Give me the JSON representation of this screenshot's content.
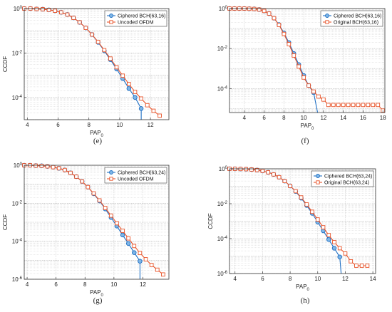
{
  "chart_data": [
    {
      "panel": "(e)",
      "type": "line",
      "xlabel": "PAP",
      "xlabel_sub": "0",
      "ylabel": "CCDF",
      "yscale": "log",
      "xlim": [
        3.8,
        13.2
      ],
      "ylim_exp": [
        -5,
        0
      ],
      "xticks": [
        4,
        6,
        8,
        10,
        12
      ],
      "yticks": [
        {
          "exp": 0,
          "label": "10",
          "sup": "0"
        },
        {
          "exp": -2,
          "label": "10",
          "sup": "-2"
        },
        {
          "exp": -4,
          "label": "10",
          "sup": "-4"
        }
      ],
      "grid": true,
      "legend": "top-right",
      "series": [
        {
          "name": "Ciphered BCH(63,16)",
          "color": "#1f6fc4",
          "marker": "circle",
          "x": [
            3.8,
            4.2,
            4.6,
            5.0,
            5.4,
            5.8,
            6.2,
            6.6,
            7.0,
            7.4,
            7.8,
            8.2,
            8.6,
            9.0,
            9.4,
            9.8,
            10.2,
            10.6,
            11.0,
            11.4
          ],
          "y_exp": [
            0.0,
            0.0,
            -0.02,
            -0.03,
            -0.06,
            -0.1,
            -0.17,
            -0.27,
            -0.42,
            -0.62,
            -0.87,
            -1.17,
            -1.52,
            -1.9,
            -2.3,
            -2.72,
            -3.15,
            -3.6,
            -4.0,
            -4.5
          ],
          "drop_x": 11.4
        },
        {
          "name": "Uncoded OFDM",
          "color": "#e8542a",
          "marker": "square",
          "x": [
            3.8,
            4.2,
            4.6,
            5.0,
            5.4,
            5.8,
            6.2,
            6.6,
            7.0,
            7.4,
            7.8,
            8.2,
            8.6,
            9.0,
            9.4,
            9.8,
            10.2,
            10.6,
            11.0,
            11.4,
            11.8,
            12.2,
            12.6
          ],
          "y_exp": [
            0.0,
            0.0,
            -0.02,
            -0.03,
            -0.06,
            -0.1,
            -0.17,
            -0.27,
            -0.42,
            -0.62,
            -0.87,
            -1.17,
            -1.5,
            -1.87,
            -2.25,
            -2.64,
            -3.02,
            -3.4,
            -3.75,
            -4.05,
            -4.35,
            -4.6,
            -4.82
          ]
        }
      ]
    },
    {
      "panel": "(f)",
      "type": "line",
      "xlabel": "PAP",
      "xlabel_sub": "0",
      "ylabel": "",
      "yscale": "log",
      "xlim": [
        2.5,
        18.2
      ],
      "ylim_exp": [
        -5.2,
        0
      ],
      "xticks": [
        4,
        6,
        8,
        10,
        12,
        14,
        16,
        18
      ],
      "yticks": [
        {
          "exp": 0,
          "label": "10",
          "sup": "0"
        },
        {
          "exp": -2,
          "label": "10",
          "sup": "-2"
        },
        {
          "exp": -4,
          "label": "10",
          "sup": "-4"
        }
      ],
      "grid": true,
      "legend": "top-right",
      "series": [
        {
          "name": "Ciphered BCH(63,16)",
          "color": "#1f6fc4",
          "marker": "circle",
          "x": [
            2.5,
            3.0,
            3.5,
            4.0,
            4.5,
            5.0,
            5.5,
            6.0,
            6.5,
            7.0,
            7.5,
            8.0,
            8.5,
            9.0,
            9.5,
            10.0,
            10.5,
            11.0
          ],
          "y_exp": [
            0.0,
            0.0,
            0.0,
            0.0,
            -0.01,
            -0.02,
            -0.05,
            -0.12,
            -0.25,
            -0.48,
            -0.8,
            -1.22,
            -1.7,
            -2.25,
            -2.8,
            -3.35,
            -3.85,
            -4.2
          ],
          "drop_x": 11.4
        },
        {
          "name": "Original BCH(63,16)",
          "color": "#e8542a",
          "marker": "square",
          "x": [
            2.5,
            3.0,
            3.5,
            4.0,
            4.5,
            5.0,
            5.5,
            6.0,
            6.5,
            7.0,
            7.5,
            8.0,
            8.5,
            9.0,
            9.5,
            10.0,
            10.5,
            11.0,
            11.5,
            12.0,
            12.5,
            13.0,
            13.5,
            14.0,
            14.5,
            15.0,
            15.5,
            16.0,
            16.5,
            17.0,
            17.5,
            18.0
          ],
          "y_exp": [
            0.0,
            0.0,
            0.0,
            0.0,
            -0.01,
            -0.02,
            -0.05,
            -0.12,
            -0.25,
            -0.48,
            -0.82,
            -1.27,
            -1.78,
            -2.35,
            -2.9,
            -3.45,
            -3.85,
            -4.15,
            -4.4,
            -4.55,
            -4.82,
            -4.82,
            -4.82,
            -4.82,
            -4.82,
            -4.82,
            -4.82,
            -4.82,
            -4.82,
            -4.82,
            -4.82,
            -5.1
          ]
        }
      ]
    },
    {
      "panel": "(g)",
      "type": "line",
      "xlabel": "PAP",
      "xlabel_sub": "0",
      "ylabel": "CCDF",
      "yscale": "log",
      "xlim": [
        3.8,
        13.8
      ],
      "ylim_exp": [
        -6,
        0
      ],
      "xticks": [
        4,
        6,
        8,
        10,
        12
      ],
      "yticks": [
        {
          "exp": 0,
          "label": "10",
          "sup": "0"
        },
        {
          "exp": -2,
          "label": "10",
          "sup": "-2"
        },
        {
          "exp": -4,
          "label": "10",
          "sup": "-4"
        },
        {
          "exp": -6,
          "label": "10",
          "sup": "-6"
        }
      ],
      "grid": true,
      "legend": "top-right",
      "series": [
        {
          "name": "Ciphered BCH(63,24)",
          "color": "#1f6fc4",
          "marker": "circle",
          "x": [
            3.8,
            4.2,
            4.6,
            5.0,
            5.4,
            5.8,
            6.2,
            6.6,
            7.0,
            7.4,
            7.8,
            8.2,
            8.6,
            9.0,
            9.4,
            9.8,
            10.2,
            10.6,
            11.0,
            11.4,
            11.8
          ],
          "y_exp": [
            0.0,
            0.0,
            -0.02,
            -0.03,
            -0.06,
            -0.1,
            -0.16,
            -0.25,
            -0.4,
            -0.6,
            -0.85,
            -1.15,
            -1.5,
            -1.88,
            -2.3,
            -2.75,
            -3.2,
            -3.67,
            -4.12,
            -4.6,
            -5.05
          ],
          "drop_x": 11.8
        },
        {
          "name": "Uncoded OFDM",
          "color": "#e8542a",
          "marker": "square",
          "x": [
            3.8,
            4.2,
            4.6,
            5.0,
            5.4,
            5.8,
            6.2,
            6.6,
            7.0,
            7.4,
            7.8,
            8.2,
            8.6,
            9.0,
            9.4,
            9.8,
            10.2,
            10.6,
            11.0,
            11.4,
            11.8,
            12.2,
            12.6,
            13.0,
            13.4
          ],
          "y_exp": [
            0.0,
            0.0,
            -0.02,
            -0.03,
            -0.06,
            -0.1,
            -0.16,
            -0.25,
            -0.4,
            -0.6,
            -0.85,
            -1.15,
            -1.48,
            -1.85,
            -2.25,
            -2.65,
            -3.05,
            -3.45,
            -3.85,
            -4.25,
            -4.62,
            -4.95,
            -5.25,
            -5.5,
            -5.75
          ]
        }
      ]
    },
    {
      "panel": "(h)",
      "type": "line",
      "xlabel": "PAP",
      "xlabel_sub": "0",
      "ylabel": "CCDF",
      "yscale": "log",
      "xlim": [
        3.6,
        14.2
      ],
      "ylim_exp": [
        -6,
        0
      ],
      "xticks": [
        4,
        6,
        8,
        10,
        12,
        14
      ],
      "yticks": [
        {
          "exp": 0,
          "label": "10",
          "sup": "0"
        },
        {
          "exp": -2,
          "label": "10",
          "sup": "-2"
        },
        {
          "exp": -4,
          "label": "10",
          "sup": "-4"
        },
        {
          "exp": -6,
          "label": "10",
          "sup": "-6"
        }
      ],
      "grid": true,
      "legend": "top-right",
      "series": [
        {
          "name": "Ciphered BCH(63,24)",
          "color": "#1f6fc4",
          "marker": "circle",
          "x": [
            3.6,
            4.0,
            4.4,
            4.8,
            5.2,
            5.6,
            6.0,
            6.4,
            6.8,
            7.2,
            7.6,
            8.0,
            8.4,
            8.8,
            9.2,
            9.6,
            10.0,
            10.4,
            10.8,
            11.2,
            11.6
          ],
          "y_exp": [
            0.0,
            0.0,
            -0.01,
            -0.02,
            -0.04,
            -0.07,
            -0.12,
            -0.2,
            -0.32,
            -0.48,
            -0.7,
            -0.98,
            -1.3,
            -1.68,
            -2.1,
            -2.55,
            -3.05,
            -3.55,
            -4.05,
            -4.55,
            -5.05
          ],
          "drop_x": 11.7
        },
        {
          "name": "Original BCH(63,24)",
          "color": "#e8542a",
          "marker": "square",
          "x": [
            3.6,
            4.0,
            4.4,
            4.8,
            5.2,
            5.6,
            6.0,
            6.4,
            6.8,
            7.2,
            7.6,
            8.0,
            8.4,
            8.8,
            9.2,
            9.6,
            10.0,
            10.4,
            10.8,
            11.2,
            11.6,
            12.0,
            12.4,
            12.8,
            13.2,
            13.6
          ],
          "y_exp": [
            0.0,
            0.0,
            -0.01,
            -0.02,
            -0.04,
            -0.07,
            -0.12,
            -0.2,
            -0.32,
            -0.48,
            -0.7,
            -0.98,
            -1.28,
            -1.64,
            -2.04,
            -2.46,
            -2.9,
            -3.35,
            -3.8,
            -4.2,
            -4.55,
            -4.85,
            -5.3,
            -5.55,
            -5.55,
            -5.55
          ]
        }
      ]
    }
  ],
  "captions": [
    "(e)",
    "(f)",
    "(g)",
    "(h)"
  ]
}
